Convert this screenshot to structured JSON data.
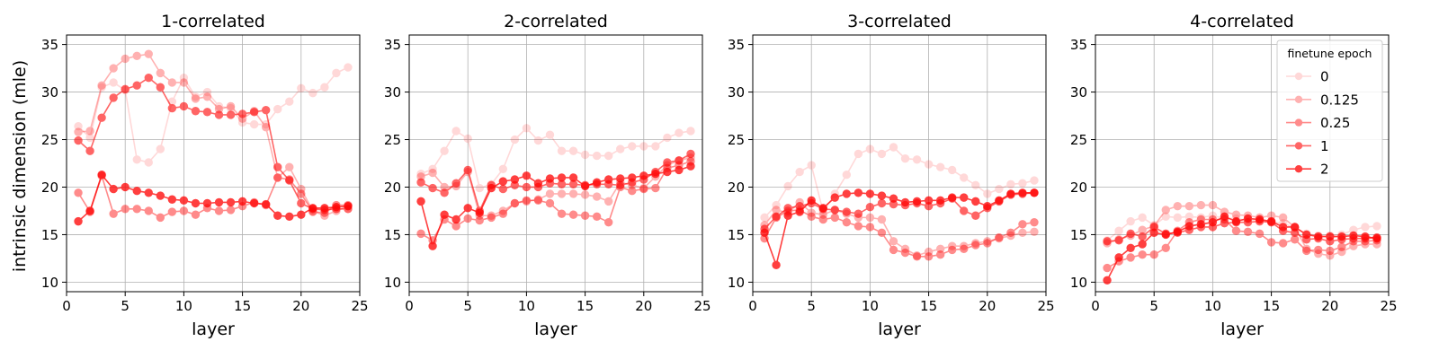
{
  "shared": {
    "xlabel": "layer",
    "ylabel": "intrinsic dimension (mle)",
    "xlim": [
      0,
      25
    ],
    "ylim": [
      9,
      36
    ],
    "xticks": [
      "0",
      "5",
      "10",
      "15",
      "20",
      "25"
    ],
    "yticks": [
      "10",
      "15",
      "20",
      "25",
      "30",
      "35"
    ],
    "color": "#ff0000",
    "legend": {
      "title": "finetune epoch",
      "placement": "top-right of fourth panel",
      "entries": [
        "0",
        "0.125",
        "0.25",
        "1",
        "2"
      ]
    }
  },
  "chart_data": [
    {
      "type": "line",
      "title": "1-correlated",
      "x": [
        1,
        2,
        3,
        4,
        5,
        6,
        7,
        8,
        9,
        10,
        11,
        12,
        13,
        14,
        15,
        16,
        17,
        18,
        19,
        20,
        21,
        22,
        23,
        24
      ],
      "grid": true,
      "series": [
        {
          "name": "0",
          "alpha": 0.15,
          "values": [
            26.4,
            25.2,
            30.5,
            31.0,
            30.2,
            22.9,
            22.6,
            24.0,
            29.0,
            31.5,
            29.5,
            30.0,
            28.5,
            28.3,
            26.8,
            26.6,
            26.6,
            28.2,
            29.0,
            30.4,
            29.9,
            30.5,
            32.0,
            32.6
          ]
        },
        {
          "name": "0.125",
          "alpha": 0.3,
          "values": [
            25.8,
            25.9,
            30.7,
            32.5,
            33.5,
            33.8,
            34.0,
            32.0,
            31.0,
            31.0,
            29.3,
            29.5,
            28.2,
            28.5,
            27.2,
            28.0,
            26.3,
            21.0,
            22.1,
            19.8,
            17.5,
            17.0,
            17.5,
            18.0
          ]
        },
        {
          "name": "0.25",
          "alpha": 0.45,
          "values": [
            19.4,
            17.4,
            21.2,
            17.2,
            17.7,
            17.7,
            17.5,
            16.8,
            17.4,
            17.5,
            17.1,
            17.8,
            17.5,
            17.6,
            18.0,
            18.4,
            18.1,
            21.0,
            20.8,
            19.3,
            17.4,
            17.3,
            18.1,
            18.1
          ]
        },
        {
          "name": "1",
          "alpha": 0.6,
          "values": [
            24.9,
            23.8,
            27.3,
            29.4,
            30.3,
            30.7,
            31.5,
            30.5,
            28.3,
            28.5,
            28.0,
            27.9,
            27.6,
            27.6,
            27.7,
            27.9,
            28.1,
            22.1,
            20.7,
            18.3,
            17.7,
            17.6,
            17.7,
            17.7
          ]
        },
        {
          "name": "2",
          "alpha": 0.75,
          "values": [
            16.4,
            17.5,
            21.3,
            19.8,
            20.0,
            19.6,
            19.4,
            19.1,
            18.7,
            18.6,
            18.3,
            18.3,
            18.4,
            18.4,
            18.5,
            18.3,
            18.2,
            17.0,
            16.9,
            17.1,
            17.8,
            17.8,
            17.9,
            18.0
          ]
        }
      ]
    },
    {
      "type": "line",
      "title": "2-correlated",
      "x": [
        1,
        2,
        3,
        4,
        5,
        6,
        7,
        8,
        9,
        10,
        11,
        12,
        13,
        14,
        15,
        16,
        17,
        18,
        19,
        20,
        21,
        22,
        23,
        24
      ],
      "grid": true,
      "series": [
        {
          "name": "0",
          "alpha": 0.15,
          "values": [
            21.4,
            21.9,
            23.8,
            25.9,
            25.1,
            19.9,
            20.3,
            21.9,
            25.0,
            26.2,
            24.9,
            25.5,
            23.8,
            23.8,
            23.4,
            23.3,
            23.3,
            24.0,
            24.3,
            24.3,
            24.3,
            25.2,
            25.7,
            25.9
          ]
        },
        {
          "name": "0.125",
          "alpha": 0.3,
          "values": [
            21.1,
            21.5,
            20.0,
            20.1,
            21.6,
            17.0,
            17.0,
            17.5,
            18.3,
            18.5,
            18.7,
            19.3,
            19.3,
            19.3,
            19.2,
            19.0,
            18.5,
            20.5,
            20.2,
            19.9,
            21.1,
            22.3,
            22.8,
            23.1
          ]
        },
        {
          "name": "0.25",
          "alpha": 0.45,
          "values": [
            15.1,
            14.4,
            16.6,
            15.9,
            16.7,
            16.5,
            16.8,
            17.2,
            18.3,
            18.6,
            18.6,
            18.3,
            17.2,
            17.1,
            17.0,
            16.9,
            16.3,
            20.0,
            19.6,
            19.8,
            19.9,
            22.0,
            22.3,
            22.7
          ]
        },
        {
          "name": "1",
          "alpha": 0.6,
          "values": [
            20.5,
            19.9,
            19.4,
            20.4,
            21.8,
            17.5,
            20.2,
            19.8,
            20.2,
            20.0,
            20.0,
            20.4,
            20.3,
            20.3,
            20.2,
            20.3,
            20.3,
            20.2,
            20.5,
            20.8,
            21.6,
            22.6,
            22.8,
            23.5
          ]
        },
        {
          "name": "2",
          "alpha": 0.75,
          "values": [
            18.5,
            13.8,
            17.1,
            16.6,
            17.8,
            17.3,
            19.9,
            20.6,
            20.8,
            21.2,
            20.4,
            20.9,
            21.0,
            21.0,
            20.1,
            20.5,
            20.8,
            20.9,
            21.0,
            21.2,
            21.4,
            21.6,
            21.8,
            22.2
          ]
        }
      ]
    },
    {
      "type": "line",
      "title": "3-correlated",
      "x": [
        1,
        2,
        3,
        4,
        5,
        6,
        7,
        8,
        9,
        10,
        11,
        12,
        13,
        14,
        15,
        16,
        17,
        18,
        19,
        20,
        21,
        22,
        23,
        24
      ],
      "grid": true,
      "series": [
        {
          "name": "0",
          "alpha": 0.15,
          "values": [
            16.8,
            18.1,
            20.1,
            21.6,
            22.3,
            17.4,
            19.3,
            21.3,
            23.5,
            24.0,
            23.5,
            24.2,
            23.0,
            22.9,
            22.4,
            22.1,
            21.8,
            21.0,
            20.2,
            19.3,
            19.8,
            20.3,
            20.4,
            20.7
          ]
        },
        {
          "name": "0.125",
          "alpha": 0.3,
          "values": [
            16.0,
            17.6,
            17.3,
            18.4,
            17.3,
            17.1,
            17.6,
            17.2,
            16.8,
            16.8,
            16.6,
            14.3,
            13.5,
            12.8,
            13.2,
            13.5,
            13.8,
            13.8,
            14.1,
            14.3,
            14.6,
            14.9,
            15.2,
            15.3
          ]
        },
        {
          "name": "0.25",
          "alpha": 0.45,
          "values": [
            14.6,
            16.8,
            17.5,
            17.6,
            16.9,
            16.6,
            16.8,
            16.3,
            15.9,
            15.8,
            15.2,
            13.4,
            13.1,
            12.7,
            12.7,
            12.9,
            13.4,
            13.5,
            13.9,
            14.1,
            14.7,
            15.2,
            16.1,
            16.3
          ]
        },
        {
          "name": "1",
          "alpha": 0.6,
          "values": [
            15.6,
            16.9,
            17.8,
            18.0,
            18.3,
            17.7,
            17.6,
            17.4,
            17.2,
            17.9,
            18.3,
            18.2,
            18.1,
            18.3,
            18.0,
            18.3,
            18.8,
            17.5,
            17.0,
            17.8,
            18.5,
            19.2,
            19.3,
            19.4
          ]
        },
        {
          "name": "2",
          "alpha": 0.75,
          "values": [
            15.2,
            11.8,
            17.0,
            17.4,
            18.6,
            17.8,
            18.9,
            19.3,
            19.4,
            19.3,
            19.1,
            18.8,
            18.4,
            18.5,
            18.6,
            18.6,
            18.9,
            18.9,
            18.5,
            18.0,
            18.6,
            19.3,
            19.4,
            19.4
          ]
        }
      ]
    },
    {
      "type": "line",
      "title": "4-correlated",
      "x": [
        1,
        2,
        3,
        4,
        5,
        6,
        7,
        8,
        9,
        10,
        11,
        12,
        13,
        14,
        15,
        16,
        17,
        18,
        19,
        20,
        21,
        22,
        23,
        24
      ],
      "grid": true,
      "series": [
        {
          "name": "0",
          "alpha": 0.15,
          "values": [
            14.4,
            15.4,
            16.4,
            16.8,
            16.0,
            16.9,
            16.8,
            16.9,
            16.8,
            17.0,
            16.7,
            16.7,
            16.5,
            16.6,
            16.3,
            16.2,
            15.7,
            15.1,
            14.9,
            14.9,
            15.0,
            15.5,
            15.8,
            15.9
          ]
        },
        {
          "name": "0.125",
          "alpha": 0.3,
          "values": [
            14.1,
            14.5,
            14.9,
            15.5,
            15.9,
            17.6,
            18.0,
            18.0,
            18.1,
            18.1,
            17.4,
            17.1,
            17.0,
            16.8,
            17.0,
            16.8,
            15.8,
            13.5,
            13.0,
            12.8,
            13.2,
            13.8,
            14.0,
            14.0
          ]
        },
        {
          "name": "0.25",
          "alpha": 0.45,
          "values": [
            11.5,
            12.2,
            12.6,
            12.9,
            12.9,
            13.6,
            15.4,
            16.3,
            16.6,
            16.6,
            16.6,
            15.4,
            15.3,
            15.1,
            14.2,
            14.1,
            14.5,
            13.3,
            13.4,
            13.3,
            13.7,
            14.3,
            14.3,
            14.4
          ]
        },
        {
          "name": "1",
          "alpha": 0.6,
          "values": [
            14.3,
            14.4,
            15.1,
            14.8,
            15.8,
            15.1,
            15.2,
            15.5,
            15.8,
            15.8,
            16.2,
            16.3,
            16.3,
            16.4,
            16.3,
            15.4,
            15.2,
            14.5,
            14.6,
            14.3,
            14.5,
            14.6,
            14.6,
            14.7
          ]
        },
        {
          "name": "2",
          "alpha": 0.75,
          "values": [
            10.2,
            12.6,
            13.6,
            14.0,
            15.2,
            15.0,
            15.3,
            15.9,
            16.1,
            16.3,
            16.9,
            16.4,
            16.7,
            16.6,
            16.4,
            15.8,
            15.8,
            15.0,
            14.8,
            14.8,
            14.8,
            14.9,
            14.8,
            14.6
          ]
        }
      ]
    }
  ]
}
